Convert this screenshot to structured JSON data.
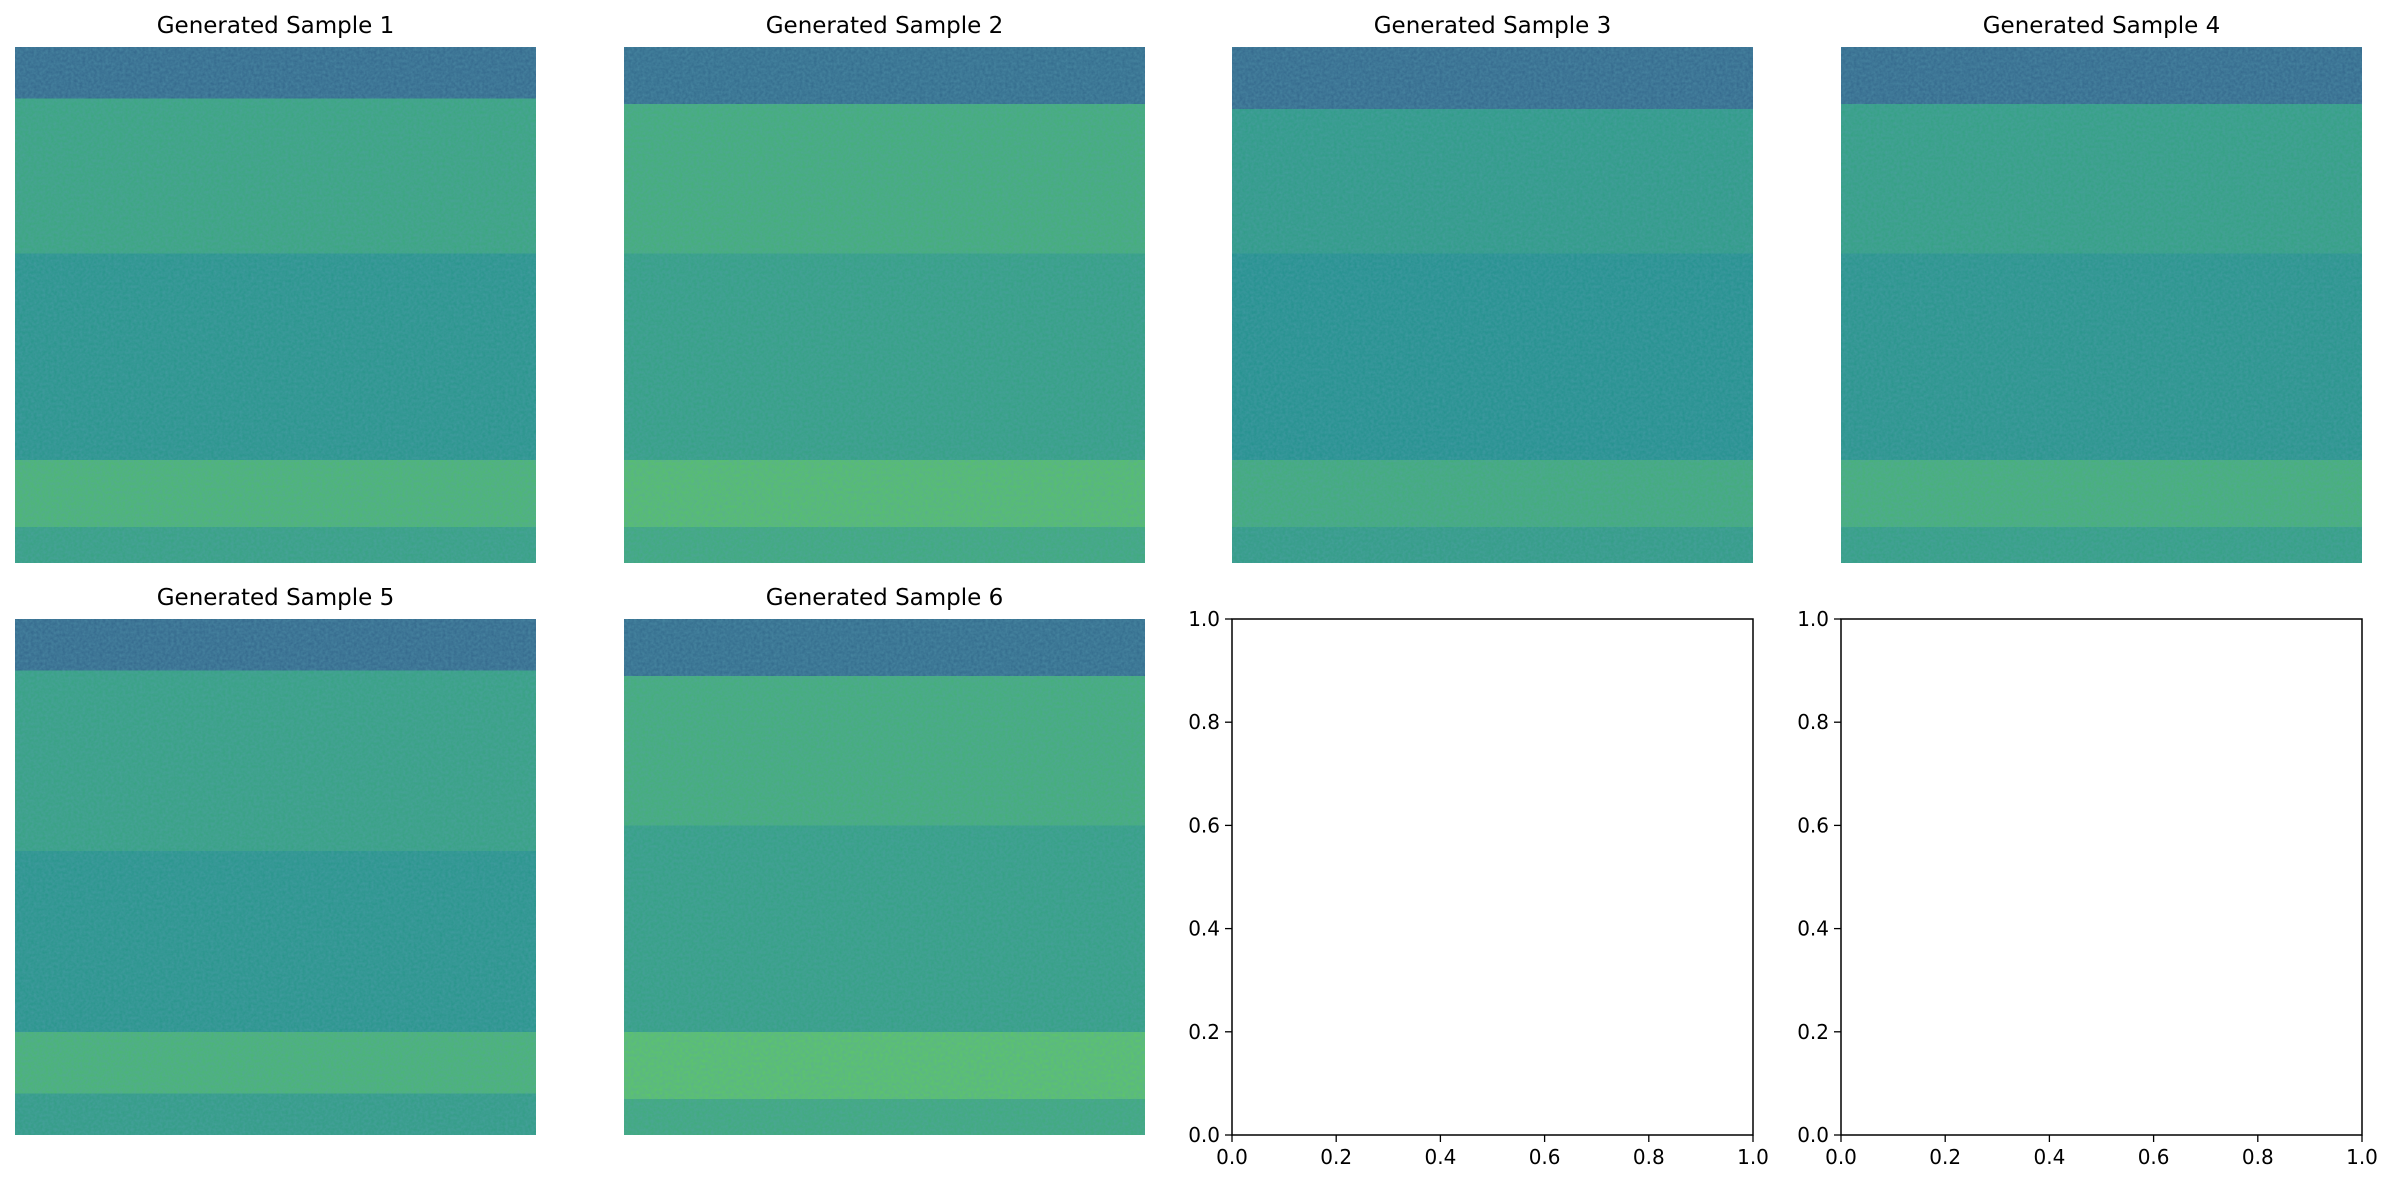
{
  "figure": {
    "background": "#ffffff"
  },
  "chart_data": [
    {
      "type": "heatmap",
      "title": "Generated Sample 1",
      "axes_visible": false,
      "colormap": "viridis",
      "bands": [
        {
          "rows": [
            0.0,
            0.1
          ],
          "level": 0.33
        },
        {
          "rows": [
            0.1,
            0.4
          ],
          "level": 0.6
        },
        {
          "rows": [
            0.4,
            0.8
          ],
          "level": 0.52
        },
        {
          "rows": [
            0.8,
            0.93
          ],
          "level": 0.68
        },
        {
          "rows": [
            0.93,
            1.0
          ],
          "level": 0.58
        }
      ]
    },
    {
      "type": "heatmap",
      "title": "Generated Sample 2",
      "axes_visible": false,
      "colormap": "viridis",
      "bands": [
        {
          "rows": [
            0.0,
            0.11
          ],
          "level": 0.34
        },
        {
          "rows": [
            0.11,
            0.4
          ],
          "level": 0.64
        },
        {
          "rows": [
            0.4,
            0.8
          ],
          "level": 0.57
        },
        {
          "rows": [
            0.8,
            0.93
          ],
          "level": 0.72
        },
        {
          "rows": [
            0.93,
            1.0
          ],
          "level": 0.62
        }
      ]
    },
    {
      "type": "heatmap",
      "title": "Generated Sample 3",
      "axes_visible": false,
      "colormap": "viridis",
      "bands": [
        {
          "rows": [
            0.0,
            0.12
          ],
          "level": 0.33
        },
        {
          "rows": [
            0.12,
            0.4
          ],
          "level": 0.55
        },
        {
          "rows": [
            0.4,
            0.8
          ],
          "level": 0.5
        },
        {
          "rows": [
            0.8,
            0.93
          ],
          "level": 0.63
        },
        {
          "rows": [
            0.93,
            1.0
          ],
          "level": 0.56
        }
      ]
    },
    {
      "type": "heatmap",
      "title": "Generated Sample 4",
      "axes_visible": false,
      "colormap": "viridis",
      "bands": [
        {
          "rows": [
            0.0,
            0.11
          ],
          "level": 0.33
        },
        {
          "rows": [
            0.11,
            0.4
          ],
          "level": 0.57
        },
        {
          "rows": [
            0.4,
            0.8
          ],
          "level": 0.52
        },
        {
          "rows": [
            0.8,
            0.93
          ],
          "level": 0.65
        },
        {
          "rows": [
            0.93,
            1.0
          ],
          "level": 0.57
        }
      ]
    },
    {
      "type": "heatmap",
      "title": "Generated Sample 5",
      "axes_visible": false,
      "colormap": "viridis",
      "bands": [
        {
          "rows": [
            0.0,
            0.1
          ],
          "level": 0.33
        },
        {
          "rows": [
            0.1,
            0.45
          ],
          "level": 0.58
        },
        {
          "rows": [
            0.45,
            0.8
          ],
          "level": 0.52
        },
        {
          "rows": [
            0.8,
            0.92
          ],
          "level": 0.67
        },
        {
          "rows": [
            0.92,
            1.0
          ],
          "level": 0.56
        }
      ]
    },
    {
      "type": "heatmap",
      "title": "Generated Sample 6",
      "axes_visible": false,
      "colormap": "viridis",
      "bands": [
        {
          "rows": [
            0.0,
            0.11
          ],
          "level": 0.34
        },
        {
          "rows": [
            0.11,
            0.4
          ],
          "level": 0.64
        },
        {
          "rows": [
            0.4,
            0.8
          ],
          "level": 0.57
        },
        {
          "rows": [
            0.8,
            0.93
          ],
          "level": 0.74
        },
        {
          "rows": [
            0.93,
            1.0
          ],
          "level": 0.62
        }
      ]
    },
    {
      "type": "empty",
      "title": "",
      "xlim": [
        0.0,
        1.0
      ],
      "ylim": [
        0.0,
        1.0
      ],
      "xticks": [
        "0.0",
        "0.2",
        "0.4",
        "0.6",
        "0.8",
        "1.0"
      ],
      "yticks": [
        "0.0",
        "0.2",
        "0.4",
        "0.6",
        "0.8",
        "1.0"
      ]
    },
    {
      "type": "empty",
      "title": "",
      "xlim": [
        0.0,
        1.0
      ],
      "ylim": [
        0.0,
        1.0
      ],
      "xticks": [
        "0.0",
        "0.2",
        "0.4",
        "0.6",
        "0.8",
        "1.0"
      ],
      "yticks": [
        "0.0",
        "0.2",
        "0.4",
        "0.6",
        "0.8",
        "1.0"
      ]
    }
  ]
}
